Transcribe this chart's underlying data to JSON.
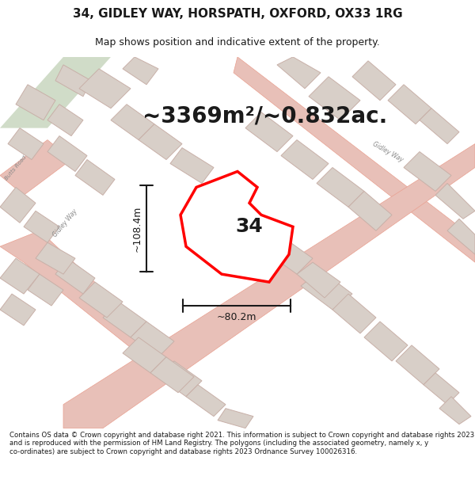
{
  "title": "34, GIDLEY WAY, HORSPATH, OXFORD, OX33 1RG",
  "subtitle": "Map shows position and indicative extent of the property.",
  "area_text": "~3369m²/~0.832ac.",
  "label_34": "34",
  "dim_height": "~108.4m",
  "dim_width": "~80.2m",
  "footer": "Contains OS data © Crown copyright and database right 2021. This information is subject to Crown copyright and database rights 2023 and is reproduced with the permission of HM Land Registry. The polygons (including the associated geometry, namely x, y co-ordinates) are subject to Crown copyright and database rights 2023 Ordnance Survey 100026316.",
  "bg_color": "#f5f0eb",
  "map_bg": "#f0ece6",
  "road_color": "#e8a090",
  "road_fill": "#f5d0c8",
  "block_fill": "#d8cfc8",
  "block_edge": "#c8b8b0",
  "plot_color": "#ff0000",
  "plot_fill": "#ffffff",
  "dim_color": "#1a1a1a",
  "title_color": "#1a1a1a",
  "footer_color": "#1a1a1a",
  "white_bg": "#ffffff",
  "green_area": "#c8d8c0"
}
